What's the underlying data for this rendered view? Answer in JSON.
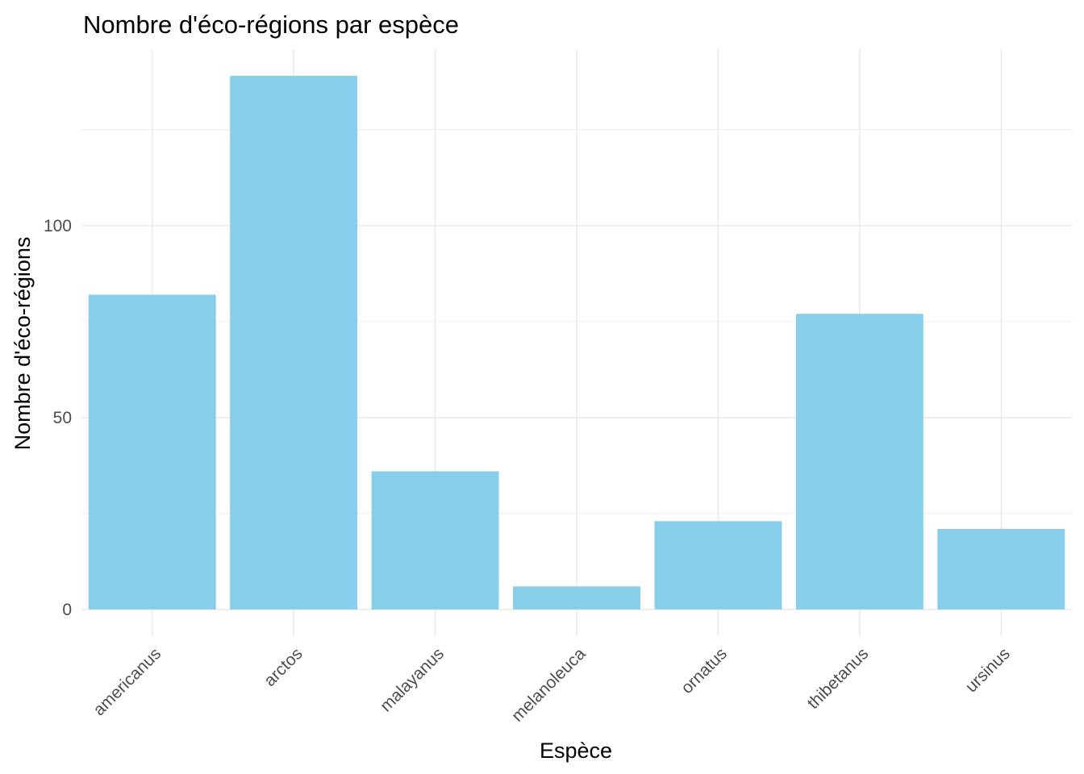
{
  "chart_data": {
    "type": "bar",
    "title": "Nombre d'éco-régions par espèce",
    "xlabel": "Espèce",
    "ylabel": "Nombre d'éco-régions",
    "categories": [
      "americanus",
      "arctos",
      "malayanus",
      "melanoleuca",
      "ornatus",
      "thibetanus",
      "ursinus"
    ],
    "values": [
      82,
      139,
      36,
      6,
      23,
      77,
      21
    ],
    "ylim": [
      -6.95,
      145.95
    ],
    "yticks": [
      0,
      50,
      100
    ],
    "ytick_labels": [
      "0",
      "50",
      "100"
    ],
    "minor_yticks": [
      25,
      75,
      125
    ],
    "grid": true,
    "legend": "none",
    "bar_color": "#87CEEB",
    "grid_color": "#EBEBEB",
    "x_tick_rotation_deg": 45
  }
}
